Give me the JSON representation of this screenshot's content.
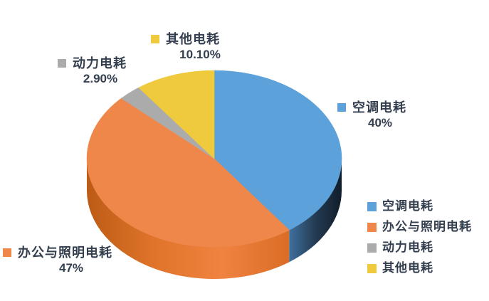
{
  "chart_data": {
    "type": "pie",
    "projection": "3d",
    "title": "",
    "background": "#FFFFFF",
    "text_color": "#333E4E",
    "legend_position": "bottom-right",
    "start_angle_deg": 0,
    "direction": "clockwise",
    "series": [
      {
        "name": "空调电耗",
        "value": 40,
        "data_label": "40%",
        "color": "#5CA1D9",
        "wall_colors": [
          "#40709E",
          "#243B52",
          "#101D2B"
        ]
      },
      {
        "name": "办公与照明电耗",
        "value": 47,
        "data_label": "47%",
        "color": "#F0874A",
        "wall_colors": [
          "#BC5B16",
          "#E0742A",
          "#EF8340",
          "#DA6D26"
        ]
      },
      {
        "name": "动力电耗",
        "value": 2.9,
        "data_label": "2.90%",
        "color": "#ABABAB",
        "wall_colors": []
      },
      {
        "name": "其他电耗",
        "value": 10.1,
        "data_label": "10.10%",
        "color": "#F0CA3D",
        "wall_colors": []
      }
    ]
  }
}
